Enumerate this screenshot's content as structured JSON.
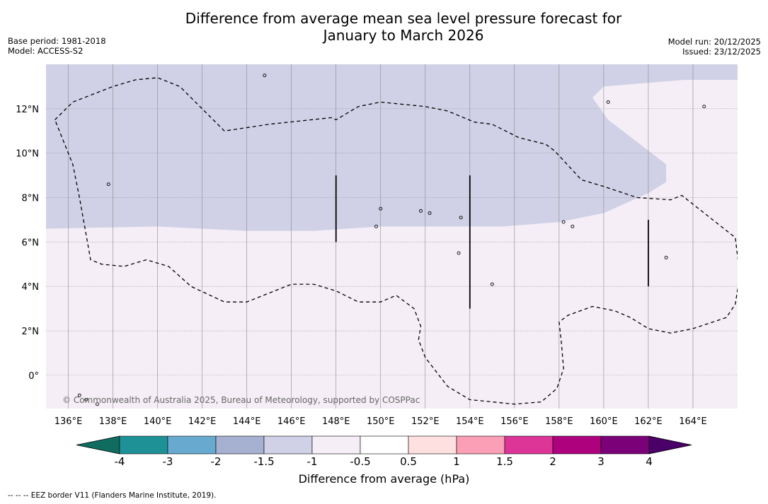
{
  "title_line1": "Difference from average mean sea level pressure forecast for",
  "title_line2": "January to March 2026",
  "base_period": "Base period: 1981-2018",
  "model": "Model: ACCESS-S2",
  "model_run": "Model run: 20/12/2025",
  "issued": "Issued: 23/12/2025",
  "copyright": "© Commonwealth of Australia 2025, Bureau of Meteorology, supported by COSPPac",
  "footer_note": "-- -- -- EEZ border V11 (Flanders Marine Institute, 2019).",
  "map": {
    "lon_min": 135,
    "lon_max": 166,
    "lat_min": -1.5,
    "lat_max": 14,
    "x_ticks": [
      {
        "value": 136,
        "label": "136°E"
      },
      {
        "value": 138,
        "label": "138°E"
      },
      {
        "value": 140,
        "label": "140°E"
      },
      {
        "value": 142,
        "label": "142°E"
      },
      {
        "value": 144,
        "label": "144°E"
      },
      {
        "value": 146,
        "label": "146°E"
      },
      {
        "value": 148,
        "label": "148°E"
      },
      {
        "value": 150,
        "label": "150°E"
      },
      {
        "value": 152,
        "label": "152°E"
      },
      {
        "value": 154,
        "label": "154°E"
      },
      {
        "value": 156,
        "label": "156°E"
      },
      {
        "value": 158,
        "label": "158°E"
      },
      {
        "value": 160,
        "label": "160°E"
      },
      {
        "value": 162,
        "label": "162°E"
      },
      {
        "value": 164,
        "label": "164°E"
      }
    ],
    "y_ticks": [
      {
        "value": 0,
        "label": "0°"
      },
      {
        "value": 2,
        "label": "2°N"
      },
      {
        "value": 4,
        "label": "4°N"
      },
      {
        "value": 6,
        "label": "6°N"
      },
      {
        "value": 8,
        "label": "8°N"
      },
      {
        "value": 10,
        "label": "10°N"
      },
      {
        "value": 12,
        "label": "12°N"
      }
    ],
    "regions": [
      {
        "name": "-1.5 to -1 hPa",
        "color": "#d0d1e6",
        "points": [
          [
            135,
            14
          ],
          [
            166,
            14
          ],
          [
            166,
            13.3
          ],
          [
            163.6,
            13.3
          ],
          [
            160,
            13
          ],
          [
            159.5,
            12.5
          ],
          [
            160.2,
            11.5
          ],
          [
            161.5,
            10.5
          ],
          [
            162.8,
            9.5
          ],
          [
            162.8,
            8.7
          ],
          [
            162,
            8.2
          ],
          [
            160,
            7.3
          ],
          [
            158,
            6.9
          ],
          [
            155.5,
            6.7
          ],
          [
            153,
            6.7
          ],
          [
            150,
            6.7
          ],
          [
            147,
            6.5
          ],
          [
            144,
            6.5
          ],
          [
            140,
            6.7
          ],
          [
            135,
            6.6
          ]
        ]
      }
    ],
    "eez": [
      [
        135.4,
        11.5
      ],
      [
        136.2,
        12.3
      ],
      [
        138,
        13
      ],
      [
        139,
        13.3
      ],
      [
        140,
        13.4
      ],
      [
        141,
        13
      ],
      [
        143,
        11
      ],
      [
        145,
        11.3
      ],
      [
        147.8,
        11.6
      ],
      [
        148,
        11.5
      ],
      [
        149,
        12.1
      ],
      [
        150,
        12.3
      ],
      [
        151,
        12.2
      ],
      [
        152,
        12.1
      ],
      [
        153,
        11.9
      ],
      [
        154.2,
        11.4
      ],
      [
        155,
        11.3
      ],
      [
        156.2,
        10.7
      ],
      [
        157.4,
        10.4
      ],
      [
        157.8,
        10.1
      ],
      [
        159,
        8.8
      ],
      [
        160,
        8.5
      ],
      [
        161.5,
        8
      ],
      [
        163,
        7.9
      ],
      [
        163.5,
        8.1
      ],
      [
        165.9,
        6.2
      ],
      [
        166.1,
        4.5
      ],
      [
        165.9,
        3.2
      ],
      [
        165.5,
        2.6
      ],
      [
        164,
        2.1
      ],
      [
        163,
        1.9
      ],
      [
        162,
        2.1
      ],
      [
        161.2,
        2.6
      ],
      [
        160.5,
        2.9
      ],
      [
        159.5,
        3.1
      ],
      [
        158.4,
        2.7
      ],
      [
        158,
        2.4
      ],
      [
        158.1,
        1.5
      ],
      [
        158.2,
        0.3
      ],
      [
        157.9,
        -0.6
      ],
      [
        157.2,
        -1.2
      ],
      [
        156,
        -1.3
      ],
      [
        154,
        -1.1
      ],
      [
        153,
        -0.5
      ],
      [
        152,
        0.8
      ],
      [
        151.7,
        1.6
      ],
      [
        151.8,
        2.2
      ],
      [
        151.5,
        3
      ],
      [
        150.7,
        3.6
      ],
      [
        150,
        3.3
      ],
      [
        149,
        3.3
      ],
      [
        148,
        3.8
      ],
      [
        147,
        4.1
      ],
      [
        146,
        4.1
      ],
      [
        145,
        3.7
      ],
      [
        144,
        3.3
      ],
      [
        143,
        3.3
      ],
      [
        141.5,
        4
      ],
      [
        140.5,
        4.9
      ],
      [
        139.5,
        5.2
      ],
      [
        138.5,
        4.9
      ],
      [
        137.5,
        5
      ],
      [
        137,
        5.2
      ],
      [
        136.5,
        8
      ],
      [
        136.2,
        9.5
      ],
      [
        135.6,
        11
      ]
    ],
    "tracks": [
      {
        "lon": 148,
        "lat_from": 6,
        "lat_to": 9
      },
      {
        "lon": 154,
        "lat_from": 3,
        "lat_to": 9
      },
      {
        "lon": 162,
        "lat_from": 4,
        "lat_to": 7
      }
    ],
    "islands": [
      [
        144.8,
        13.5
      ],
      [
        137.8,
        8.6
      ],
      [
        150,
        7.5
      ],
      [
        149.8,
        6.7
      ],
      [
        151.8,
        7.4
      ],
      [
        152.2,
        7.3
      ],
      [
        158.2,
        6.9
      ],
      [
        158.6,
        6.7
      ],
      [
        162.8,
        5.3
      ],
      [
        153.5,
        5.5
      ],
      [
        155,
        4.1
      ],
      [
        160.2,
        12.3
      ],
      [
        164.5,
        12.1
      ],
      [
        136.5,
        -0.9
      ],
      [
        136.8,
        -1.1
      ],
      [
        137.3,
        -1.3
      ],
      [
        153.6,
        7.1
      ]
    ],
    "base_color": "#f5eef6",
    "grid_color": "#888888"
  },
  "colorbar": {
    "title": "Difference from average (hPa)",
    "low_extend_color": "#0f6c5f",
    "high_extend_color": "#4a0068",
    "bins": [
      {
        "color": "#1e9196"
      },
      {
        "color": "#67a9cf"
      },
      {
        "color": "#a6b0d0"
      },
      {
        "color": "#d0d1e6"
      },
      {
        "color": "#f5eef6"
      },
      {
        "color": "#ffffff"
      },
      {
        "color": "#fee0e0"
      },
      {
        "color": "#fa9fb5"
      },
      {
        "color": "#dd3497"
      },
      {
        "color": "#ae017e"
      },
      {
        "color": "#7a0177"
      }
    ],
    "tick_labels": [
      "-4",
      "-3",
      "-2",
      "-1.5",
      "-1",
      "-0.5",
      "0.5",
      "1",
      "1.5",
      "2",
      "3",
      "4"
    ]
  }
}
